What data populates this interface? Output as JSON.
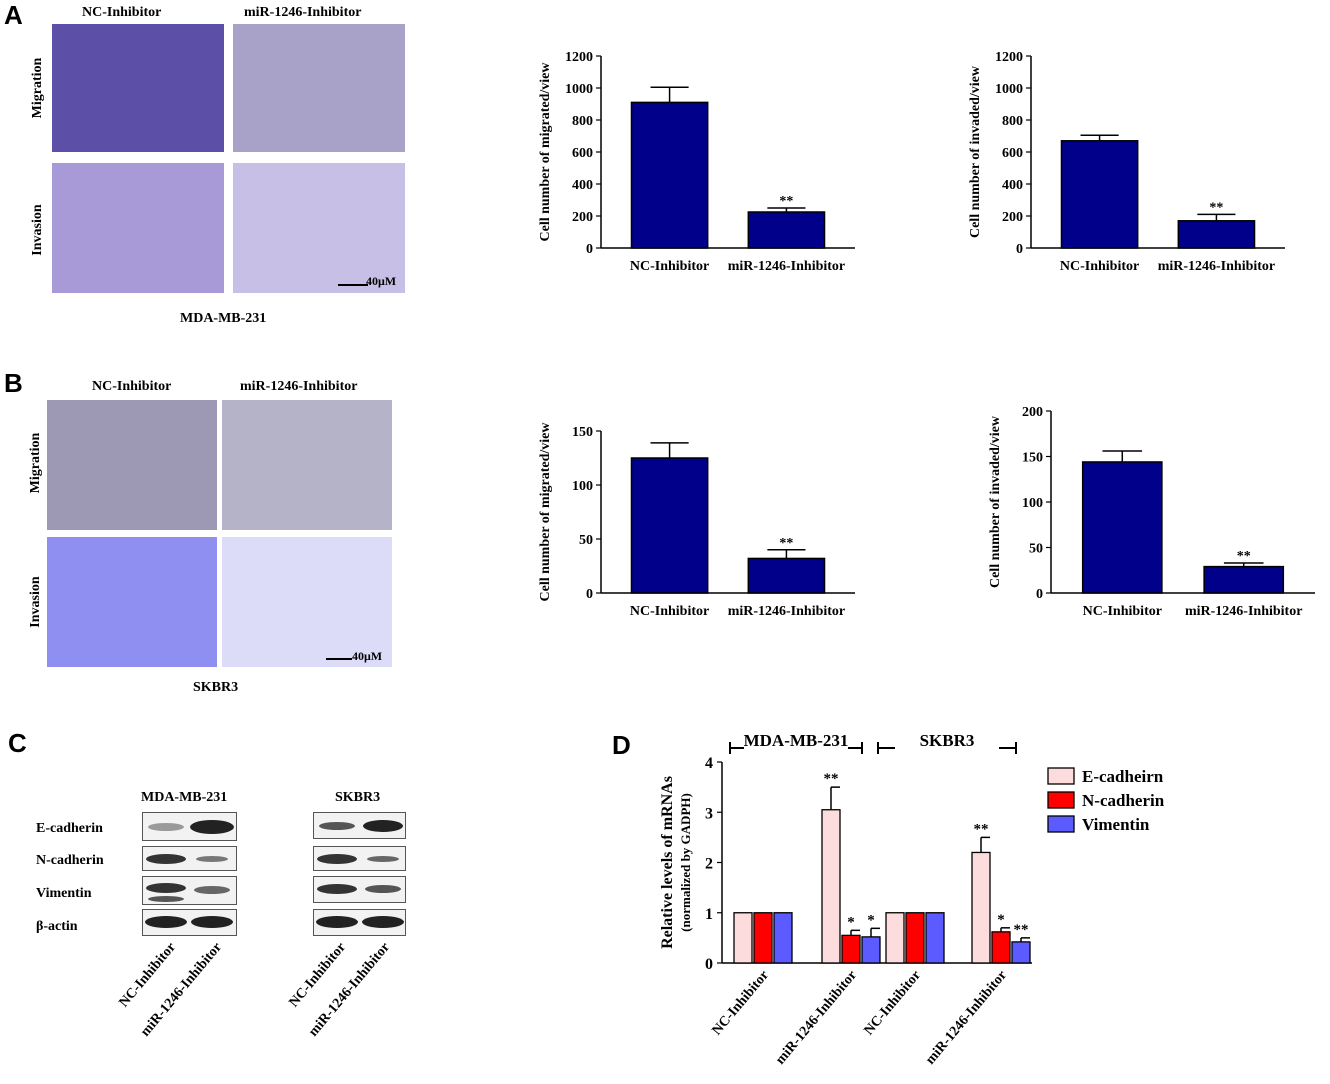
{
  "panels": {
    "a": "A",
    "b": "B",
    "c": "C",
    "d": "D"
  },
  "micrographs": {
    "a": {
      "col_labels": [
        "NC-Inhibitor",
        "miR-1246-Inhibitor"
      ],
      "row_labels": [
        "Migration",
        "Invasion"
      ],
      "scale": "40μM",
      "cell_line": "MDA-MB-231"
    },
    "b": {
      "col_labels": [
        "NC-Inhibitor",
        "miR-1246-Inhibitor"
      ],
      "row_labels": [
        "Migration",
        "Invasion"
      ],
      "scale": "40μM",
      "cell_line": "SKBR3"
    }
  },
  "western_blot": {
    "groups": [
      "MDA-MB-231",
      "SKBR3"
    ],
    "proteins": [
      "E-cadherin",
      "N-cadherin",
      "Vimentin",
      "β-actin"
    ],
    "lanes": [
      "NC-Inhibitor",
      "miR-1246-Inhibitor"
    ]
  },
  "chart_data": [
    {
      "id": "a_migrated",
      "type": "bar",
      "categories": [
        "NC-Inhibitor",
        "miR-1246-Inhibitor"
      ],
      "values": [
        910,
        225
      ],
      "errors": [
        95,
        25
      ],
      "annotations": [
        "",
        "**"
      ],
      "ylabel": "Cell number of migrated/view",
      "ylim": [
        0,
        1200
      ],
      "yticks": [
        0,
        200,
        400,
        600,
        800,
        1000,
        1200
      ],
      "color": "#00008b"
    },
    {
      "id": "a_invaded",
      "type": "bar",
      "categories": [
        "NC-Inhibitor",
        "miR-1246-Inhibitor"
      ],
      "values": [
        670,
        170
      ],
      "errors": [
        35,
        40
      ],
      "annotations": [
        "",
        "**"
      ],
      "ylabel": "Cell number of invaded/view",
      "ylim": [
        0,
        1200
      ],
      "yticks": [
        0,
        200,
        400,
        600,
        800,
        1000,
        1200
      ],
      "color": "#00008b"
    },
    {
      "id": "b_migrated",
      "type": "bar",
      "categories": [
        "NC-Inhibitor",
        "miR-1246-Inhibitor"
      ],
      "values": [
        125,
        32
      ],
      "errors": [
        14,
        8
      ],
      "annotations": [
        "",
        "**"
      ],
      "ylabel": "Cell number of migrated/view",
      "ylim": [
        0,
        150
      ],
      "yticks": [
        0,
        50,
        100,
        150
      ],
      "color": "#00008b"
    },
    {
      "id": "b_invaded",
      "type": "bar",
      "categories": [
        "NC-Inhibitor",
        "miR-1246-Inhibitor"
      ],
      "values": [
        144,
        29
      ],
      "errors": [
        12,
        4
      ],
      "annotations": [
        "",
        "**"
      ],
      "ylabel": "Cell number of invaded/view",
      "ylim": [
        0,
        200
      ],
      "yticks": [
        0,
        50,
        100,
        150,
        200
      ],
      "color": "#00008b"
    },
    {
      "id": "d_mrna",
      "type": "bar",
      "categories": [
        "NC-Inhibitor",
        "miR-1246-Inhibitor",
        "NC-Inhibitor",
        "miR-1246-Inhibitor"
      ],
      "groups": [
        "MDA-MB-231",
        "SKBR3"
      ],
      "series": [
        {
          "name": "E-cadheirn",
          "color": "#fcdcdc",
          "values": [
            1,
            3.05,
            1,
            2.2
          ],
          "errors": [
            0,
            0.45,
            0,
            0.3
          ],
          "annotations": [
            "",
            "**",
            "",
            "**"
          ]
        },
        {
          "name": "N-cadherin",
          "color": "#ff0000",
          "values": [
            1,
            0.55,
            1,
            0.62
          ],
          "errors": [
            0,
            0.1,
            0,
            0.08
          ],
          "annotations": [
            "",
            "*",
            "",
            "*"
          ]
        },
        {
          "name": "Vimentin",
          "color": "#5b5bff",
          "values": [
            1,
            0.52,
            1,
            0.42
          ],
          "errors": [
            0,
            0.17,
            0,
            0.08
          ],
          "annotations": [
            "",
            "*",
            "",
            "**"
          ]
        }
      ],
      "ylabel": "Relative levels of mRNAs",
      "ylabel2": "(normalized by GADPH)",
      "ylim": [
        0,
        4
      ],
      "yticks": [
        0,
        1,
        2,
        3,
        4
      ]
    }
  ]
}
